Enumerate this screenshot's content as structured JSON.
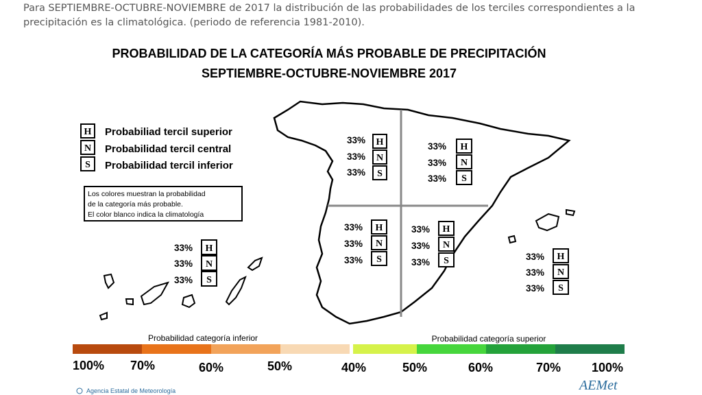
{
  "intro_text": "Para SEPTIEMBRE-OCTUBRE-NOVIEMBRE de 2017 la distribución de las probabilidades de los terciles correspondientes a la precipitación es la climatológica. (periodo de referencia 1981-2010).",
  "map": {
    "title_line1": "PROBABILIDAD DE LA CATEGORÍA MÁS PROBABLE DE PRECIPITACIÓN",
    "title_line2": "SEPTIEMBRE-OCTUBRE-NOVIEMBRE 2017",
    "legend": [
      {
        "letter": "H",
        "label": "Probabiliad tercil superior"
      },
      {
        "letter": "N",
        "label": "Probabilidad tercil central"
      },
      {
        "letter": "S",
        "label": "Probabilidad tercil inferior"
      }
    ],
    "note_lines": [
      "Los colores muestran la probabilidad",
      "de la categoría más probable.",
      "El color blanco indica la climatología"
    ],
    "regions": [
      {
        "id": "northwest",
        "H": "33%",
        "N": "33%",
        "S": "33%"
      },
      {
        "id": "northeast",
        "H": "33%",
        "N": "33%",
        "S": "33%"
      },
      {
        "id": "southwest",
        "H": "33%",
        "N": "33%",
        "S": "33%"
      },
      {
        "id": "southeast",
        "H": "33%",
        "N": "33%",
        "S": "33%"
      },
      {
        "id": "canarias",
        "H": "33%",
        "N": "33%",
        "S": "33%"
      },
      {
        "id": "baleares",
        "H": "33%",
        "N": "33%",
        "S": "33%"
      }
    ],
    "scale": {
      "label_inferior": "Probabilidad categoría inferior",
      "label_superior": "Probabilidad categoría superior",
      "ticks": [
        "100%",
        "70%",
        "60%",
        "50%",
        "40%",
        "50%",
        "60%",
        "70%",
        "100%"
      ],
      "colors_inferior": [
        "#b84a0e",
        "#e8731a",
        "#f2a35a",
        "#f8d9b4"
      ],
      "colors_superior": [
        "#d6f24a",
        "#46d63c",
        "#24a23a",
        "#1f7d4a"
      ]
    },
    "agency": "Agencia Estatal de Meteorología",
    "logo_text": "AEMet"
  }
}
